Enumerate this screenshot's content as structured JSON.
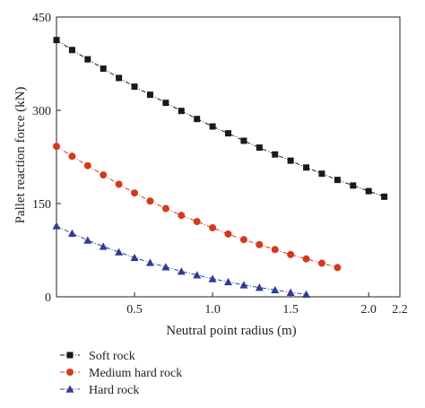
{
  "chart_data": {
    "type": "line",
    "xlabel": "Neutral point radius (m)",
    "ylabel": "Pallet reaction force (kN)",
    "xlim": [
      0,
      2.2
    ],
    "ylim": [
      0,
      450
    ],
    "x_ticks": [
      0.5,
      1.0,
      1.5,
      2.0,
      2.2
    ],
    "x_tick_labels": [
      "0.5",
      "1.0",
      "1.5",
      "2.0",
      "2.2"
    ],
    "y_ticks": [
      0,
      150,
      300,
      450
    ],
    "y_tick_labels": [
      "0",
      "150",
      "300",
      "450"
    ],
    "grid": false,
    "legend_position": "bottom-left",
    "series": [
      {
        "name": "Soft rock",
        "color": "#1a1a1a",
        "marker": "square",
        "line_style": "dash-dot",
        "x": [
          0.0,
          0.1,
          0.2,
          0.3,
          0.4,
          0.5,
          0.6,
          0.7,
          0.8,
          0.9,
          1.0,
          1.1,
          1.2,
          1.3,
          1.4,
          1.5,
          1.6,
          1.7,
          1.8,
          1.9,
          2.0,
          2.1
        ],
        "y": [
          413,
          397,
          382,
          367,
          352,
          338,
          325,
          312,
          299,
          286,
          274,
          263,
          251,
          240,
          229,
          219,
          208,
          198,
          188,
          179,
          170,
          161
        ]
      },
      {
        "name": "Medium hard rock",
        "color": "#d23a1e",
        "marker": "circle",
        "line_style": "dash-dot",
        "x": [
          0.0,
          0.1,
          0.2,
          0.3,
          0.4,
          0.5,
          0.6,
          0.7,
          0.8,
          0.9,
          1.0,
          1.1,
          1.2,
          1.3,
          1.4,
          1.5,
          1.6,
          1.7,
          1.8
        ],
        "y": [
          242,
          226,
          211,
          196,
          181,
          167,
          154,
          142,
          131,
          121,
          111,
          101,
          92,
          84,
          76,
          68,
          61,
          54,
          47
        ]
      },
      {
        "name": "Hard rock",
        "color": "#2f3b96",
        "marker": "triangle",
        "line_style": "dash-dot",
        "x": [
          0.0,
          0.1,
          0.2,
          0.3,
          0.4,
          0.5,
          0.6,
          0.7,
          0.8,
          0.9,
          1.0,
          1.1,
          1.2,
          1.3,
          1.4,
          1.5,
          1.6
        ],
        "y": [
          114,
          102,
          91,
          81,
          72,
          63,
          55,
          48,
          41,
          35,
          29,
          24,
          19,
          15,
          11,
          7,
          4
        ]
      }
    ]
  }
}
